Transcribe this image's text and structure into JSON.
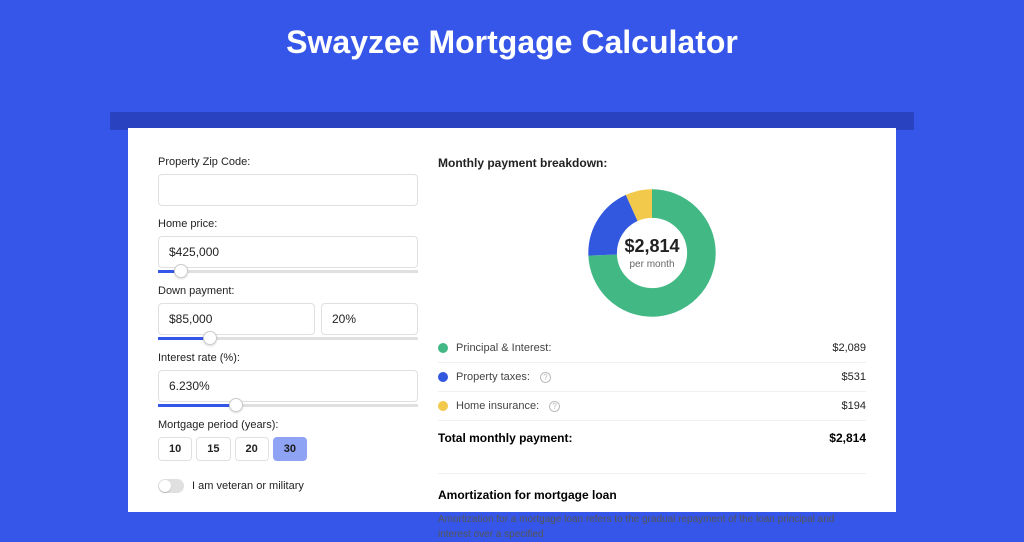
{
  "page": {
    "title": "Swayzee Mortgage Calculator",
    "background_color": "#3556e8",
    "stripe_color": "#2942bf",
    "card_color": "#ffffff"
  },
  "form": {
    "zip": {
      "label": "Property Zip Code:",
      "value": ""
    },
    "home_price": {
      "label": "Home price:",
      "value": "$425,000",
      "slider_pct": 9
    },
    "down_payment": {
      "label": "Down payment:",
      "amount": "$85,000",
      "pct": "20%",
      "slider_pct": 20
    },
    "interest": {
      "label": "Interest rate (%):",
      "value": "6.230%",
      "slider_pct": 30
    },
    "period": {
      "label": "Mortgage period (years):",
      "options": [
        "10",
        "15",
        "20",
        "30"
      ],
      "selected_index": 3
    },
    "veteran": {
      "label": "I am veteran or military",
      "checked": false
    }
  },
  "breakdown": {
    "title": "Monthly payment breakdown:",
    "donut": {
      "center_value": "$2,814",
      "center_sub": "per month",
      "slices": [
        {
          "label": "Principal & Interest:",
          "value": "$2,089",
          "color": "#42b884",
          "pct": 74.2
        },
        {
          "label": "Property taxes:",
          "value": "$531",
          "color": "#3358e0",
          "pct": 18.9,
          "info": true
        },
        {
          "label": "Home insurance:",
          "value": "$194",
          "color": "#f3c94c",
          "pct": 6.9,
          "info": true
        }
      ],
      "stroke_width": 22,
      "bg": "#ffffff"
    },
    "total": {
      "label": "Total monthly payment:",
      "value": "$2,814"
    }
  },
  "amortization": {
    "title": "Amortization for mortgage loan",
    "text": "Amortization for a mortgage loan refers to the gradual repayment of the loan principal and interest over a specified"
  },
  "colors": {
    "border": "#e0e0e0",
    "text": "#222222",
    "accent": "#3556e8"
  }
}
